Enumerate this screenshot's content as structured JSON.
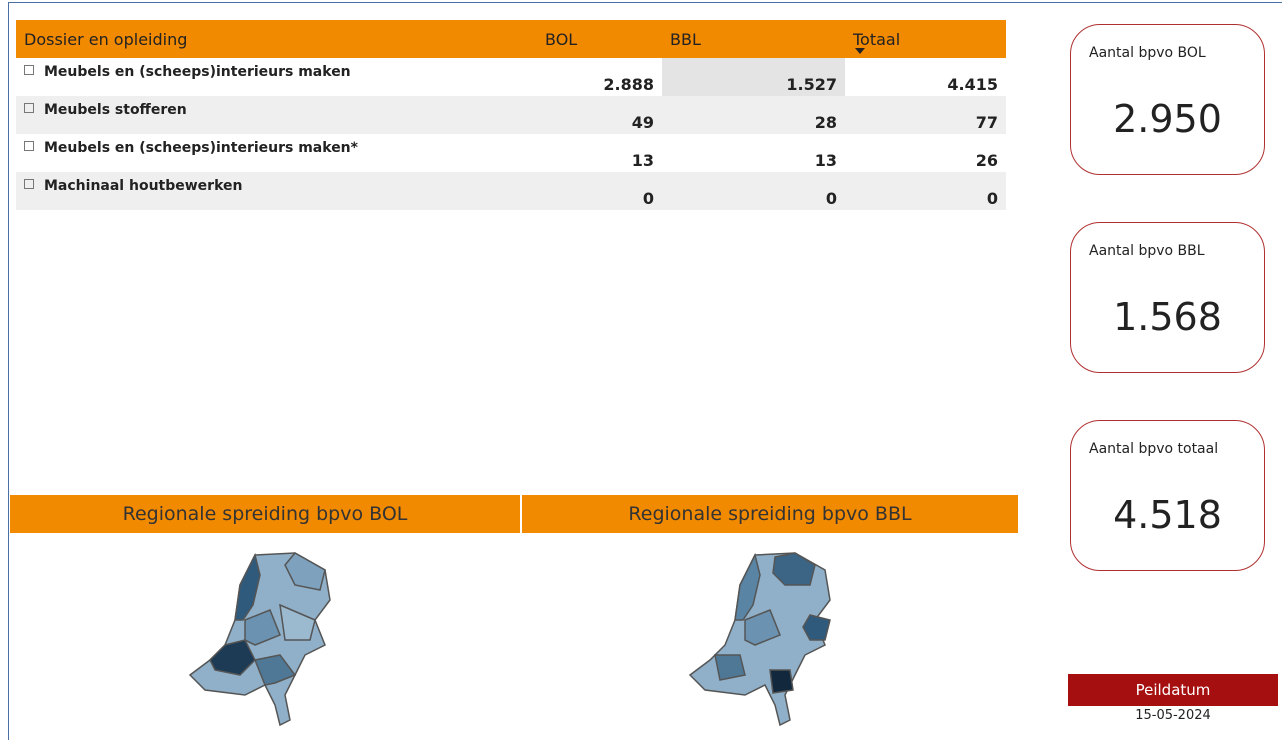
{
  "table": {
    "header": [
      "Dossier en opleiding",
      "BOL",
      "BBL",
      "Totaal"
    ],
    "rows": [
      [
        "Meubels en (scheeps)interieurs maken",
        "2.888",
        "1.527",
        "4.415"
      ],
      [
        "Meubels stofferen",
        "49",
        "28",
        "77"
      ],
      [
        "Meubels en (scheeps)interieurs maken*",
        "13",
        "13",
        "26"
      ],
      [
        "Machinaal houtbewerken",
        "0",
        "0",
        "0"
      ]
    ]
  },
  "cards": [
    {
      "label": "Aantal bpvo BOL",
      "value": "2.950"
    },
    {
      "label": "Aantal bpvo BBL",
      "value": "1.568"
    },
    {
      "label": "Aantal bpvo totaal",
      "value": "4.518"
    }
  ],
  "maps": [
    {
      "title": "Regionale spreiding bpvo BOL"
    },
    {
      "title": "Regionale spreiding bpvo BBL"
    }
  ],
  "peildatum": {
    "label": "Peildatum",
    "date": "15-05-2024"
  }
}
